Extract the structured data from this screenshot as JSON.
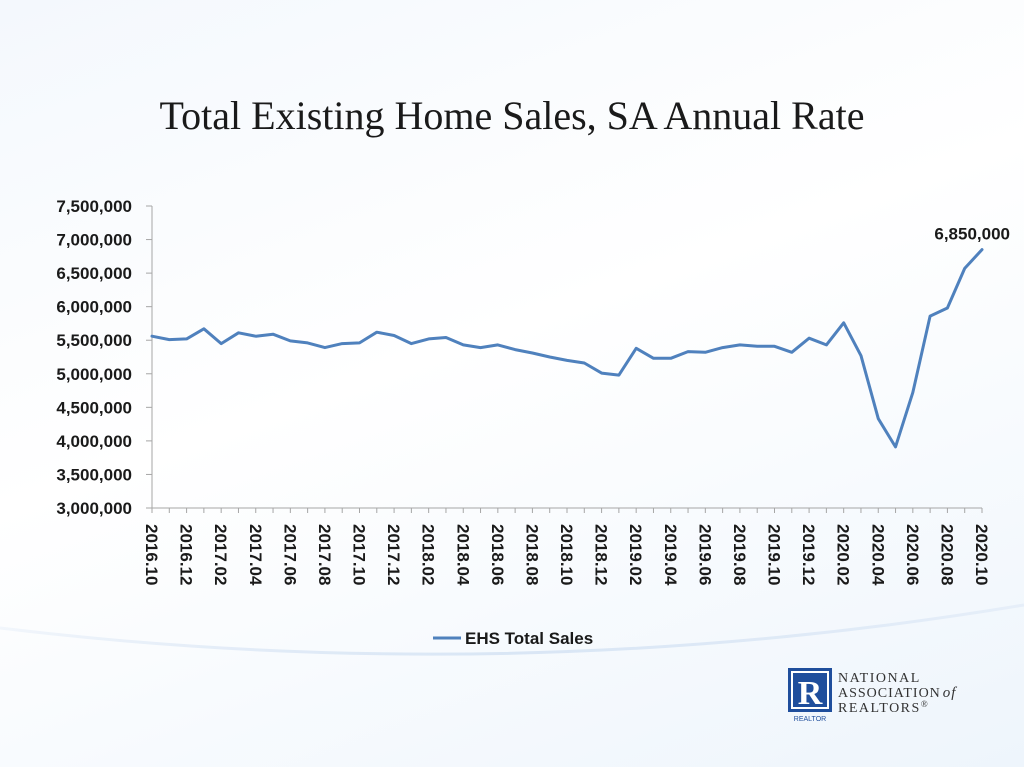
{
  "chart_data": {
    "type": "line",
    "title": "Total Existing Home Sales, SA Annual Rate",
    "xlabel": "",
    "ylabel": "",
    "ylim": [
      3000000,
      7500000
    ],
    "ystep": 500000,
    "yticks": [
      "3,000,000",
      "3,500,000",
      "4,000,000",
      "4,500,000",
      "5,000,000",
      "5,500,000",
      "6,000,000",
      "6,500,000",
      "7,000,000",
      "7,500,000"
    ],
    "x": [
      "2016.10",
      "2016.11",
      "2016.12",
      "2017.01",
      "2017.02",
      "2017.03",
      "2017.04",
      "2017.05",
      "2017.06",
      "2017.07",
      "2017.08",
      "2017.09",
      "2017.10",
      "2017.11",
      "2017.12",
      "2018.01",
      "2018.02",
      "2018.03",
      "2018.04",
      "2018.05",
      "2018.06",
      "2018.07",
      "2018.08",
      "2018.09",
      "2018.10",
      "2018.11",
      "2018.12",
      "2019.01",
      "2019.02",
      "2019.03",
      "2019.04",
      "2019.05",
      "2019.06",
      "2019.07",
      "2019.08",
      "2019.09",
      "2019.10",
      "2019.11",
      "2019.12",
      "2020.01",
      "2020.02",
      "2020.03",
      "2020.04",
      "2020.05",
      "2020.06",
      "2020.07",
      "2020.08",
      "2020.09",
      "2020.10"
    ],
    "xtick_labels": [
      "2016.10",
      "2016.12",
      "2017.02",
      "2017.04",
      "2017.06",
      "2017.08",
      "2017.10",
      "2017.12",
      "2018.02",
      "2018.04",
      "2018.06",
      "2018.08",
      "2018.10",
      "2018.12",
      "2019.02",
      "2019.04",
      "2019.06",
      "2019.08",
      "2019.10",
      "2019.12",
      "2020.02",
      "2020.04",
      "2020.06",
      "2020.08",
      "2020.10"
    ],
    "series": [
      {
        "name": "EHS Total Sales",
        "color": "#4f81bd",
        "values": [
          5560000,
          5510000,
          5520000,
          5670000,
          5450000,
          5610000,
          5560000,
          5590000,
          5490000,
          5460000,
          5390000,
          5450000,
          5460000,
          5620000,
          5570000,
          5450000,
          5520000,
          5540000,
          5430000,
          5390000,
          5430000,
          5360000,
          5310000,
          5250000,
          5200000,
          5160000,
          5010000,
          4980000,
          5380000,
          5230000,
          5230000,
          5330000,
          5320000,
          5390000,
          5430000,
          5410000,
          5410000,
          5320000,
          5530000,
          5430000,
          5760000,
          5270000,
          4330000,
          3910000,
          4720000,
          5860000,
          5980000,
          6570000,
          6850000
        ]
      }
    ],
    "annotations": [
      {
        "x": "2020.10",
        "text": "6,850,000"
      }
    ],
    "legend": {
      "position": "bottom",
      "label": "EHS Total Sales"
    },
    "grid": false
  },
  "logo": {
    "letter": "R",
    "sub": "REALTOR",
    "line1": "NATIONAL",
    "line2": "ASSOCIATION",
    "of": "of",
    "line3": "REALTORS",
    "mark": "®"
  }
}
